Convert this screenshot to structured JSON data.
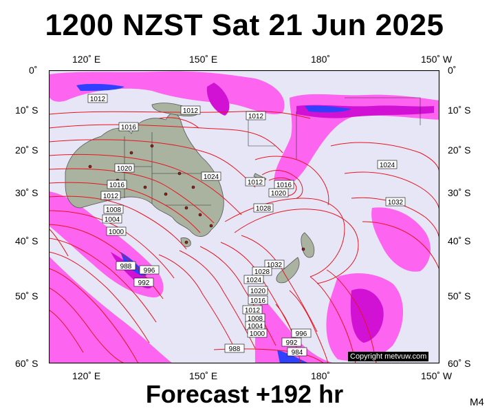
{
  "title": "1200 NZST Sat 21 Jun 2025",
  "footer": "Forecast +192 hr",
  "model_tag": "M4",
  "copyright": "Copyright metvuw.com",
  "top_axis": [
    "120˚ E",
    "150˚ E",
    "180˚",
    "150˚ W"
  ],
  "bottom_axis": [
    "120˚ E",
    "150˚ E",
    "180˚",
    "150˚ W"
  ],
  "left_axis": [
    "0˚",
    "10˚ S",
    "20˚ S",
    "30˚ S",
    "40˚ S",
    "50˚ S",
    "60˚ S"
  ],
  "right_axis": [
    "0˚",
    "10˚ S",
    "20˚ S",
    "30˚ S",
    "40˚ S",
    "50˚ S",
    "60˚ S"
  ],
  "isobar_labels": [
    "1012",
    "1012",
    "1012",
    "1016",
    "1020",
    "1016",
    "1012",
    "1008",
    "1004",
    "1000",
    "988",
    "992",
    "996",
    "1024",
    "1012",
    "1016",
    "1020",
    "1028",
    "1024",
    "1032",
    "1032",
    "1028",
    "1024",
    "1020",
    "1016",
    "1012",
    "1008",
    "1004",
    "1000",
    "996",
    "992",
    "984",
    "988"
  ],
  "colors": {
    "ocean": "#e6e6f7",
    "land": "#a9b3a0",
    "isobar": "#e8141e",
    "rain_light": "#ff5af0",
    "rain_mid": "#d000d0",
    "rain_heavy": "#3040ff"
  }
}
